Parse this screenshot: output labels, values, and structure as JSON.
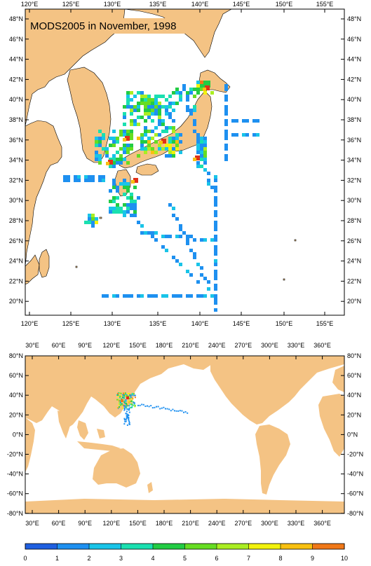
{
  "title": "MODS2005 in November, 1998",
  "top_map": {
    "lon_labels": [
      "120°E",
      "125°E",
      "130°E",
      "135°E",
      "140°E",
      "145°E",
      "150°E",
      "155°E"
    ],
    "lat_labels": [
      "48°N",
      "46°N",
      "44°N",
      "42°N",
      "40°N",
      "38°N",
      "36°N",
      "34°N",
      "32°N",
      "30°N",
      "28°N",
      "26°N",
      "24°N",
      "22°N",
      "20°N"
    ]
  },
  "bottom_map": {
    "lon_labels": [
      "30°E",
      "60°E",
      "90°E",
      "120°E",
      "150°E",
      "180°E",
      "210°E",
      "240°E",
      "270°E",
      "300°E",
      "330°E",
      "360°E"
    ],
    "lat_labels": [
      "80°N",
      "60°N",
      "40°N",
      "20°N",
      "0°N",
      "-20°N",
      "-40°N",
      "-60°N",
      "-80°N"
    ]
  },
  "colorbar": {
    "labels": [
      "0",
      "1",
      "2",
      "3",
      "4",
      "5",
      "6",
      "7",
      "8",
      "9",
      "10"
    ],
    "colors": [
      "#1f5fe0",
      "#1e90f0",
      "#19c4e8",
      "#1ae0b0",
      "#22cc44",
      "#66dd22",
      "#aaee22",
      "#f2f20c",
      "#f8c010",
      "#f07818",
      "#e03018"
    ]
  },
  "colors": {
    "land": "#f4c384",
    "ocean": "#ffffff",
    "frame": "#000000"
  }
}
